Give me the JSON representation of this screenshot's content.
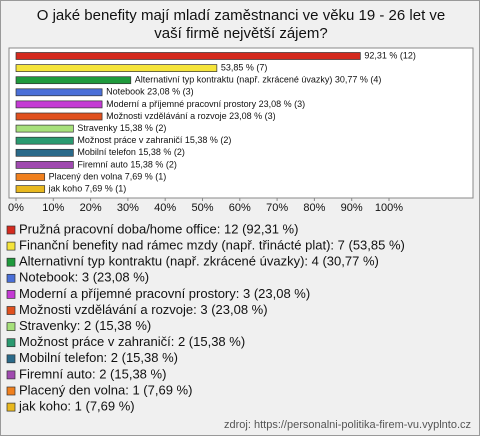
{
  "chart_data": {
    "type": "bar",
    "orientation": "horizontal",
    "title": "O jaké benefity mají mladí zaměstnanci ve věku 19 - 26 let ve vaší firmě největší zájem?",
    "values": [
      92.31,
      53.85,
      30.77,
      23.08,
      23.08,
      23.08,
      15.38,
      15.38,
      15.38,
      15.38,
      7.69,
      7.69
    ],
    "value_labels": [
      "92,31 % (12)",
      "53,85 % (7)",
      "Alternativní typ kontraktu (např. zkrácené úvazky) 30,77 % (4)",
      "Notebook 23,08 % (3)",
      "Moderní a příjemné pracovní prostory 23,08 % (3)",
      "Možnosti vzdělávání a rozvoje 23,08 % (3)",
      "Stravenky 15,38 % (2)",
      "Možnost práce v zahraničí 15,38 % (2)",
      "Mobilní telefon 15,38 % (2)",
      "Firemní auto 15,38 % (2)",
      "Placený den volna 7,69 % (1)",
      "jak koho 7,69 % (1)"
    ],
    "colors": [
      "#d42a1e",
      "#f5e43a",
      "#1f9a3c",
      "#4a6fd8",
      "#c43ad4",
      "#e0501e",
      "#a6e07a",
      "#2a9a70",
      "#2a6a8a",
      "#a04ab0",
      "#f0801e",
      "#e8b81e"
    ],
    "legend": [
      "Pružná pracovní doba/home office: 12 (92,31 %)",
      "Finanční benefity nad rámec mzdy (např. třinácté plat): 7 (53,85 %)",
      "Alternativní typ kontraktu (např. zkrácené úvazky): 4 (30,77 %)",
      "Notebook: 3 (23,08 %)",
      "Moderní a příjemné pracovní prostory: 3 (23,08 %)",
      "Možnosti vzdělávání a rozvoje: 3 (23,08 %)",
      "Stravenky: 2 (15,38 %)",
      "Možnost práce v zahraničí: 2 (15,38 %)",
      "Mobilní telefon: 2 (15,38 %)",
      "Firemní auto: 2 (15,38 %)",
      "Placený den volna: 1 (7,69 %)",
      "jak koho: 1 (7,69 %)"
    ],
    "xlim": [
      0,
      100
    ],
    "xticks": [
      {
        "value": 0,
        "label": "0%"
      },
      {
        "value": 10,
        "label": "10%"
      },
      {
        "value": 20,
        "label": "20%"
      },
      {
        "value": 30,
        "label": "30%"
      },
      {
        "value": 40,
        "label": "40%"
      },
      {
        "value": 50,
        "label": "50%"
      },
      {
        "value": 60,
        "label": "60%"
      },
      {
        "value": 70,
        "label": "70%"
      },
      {
        "value": 80,
        "label": "80%"
      },
      {
        "value": 90,
        "label": "90%"
      },
      {
        "value": 100,
        "label": "100%"
      }
    ],
    "source": "zdroj: https://personalni-politika-firem-vu.vyplnto.cz"
  }
}
